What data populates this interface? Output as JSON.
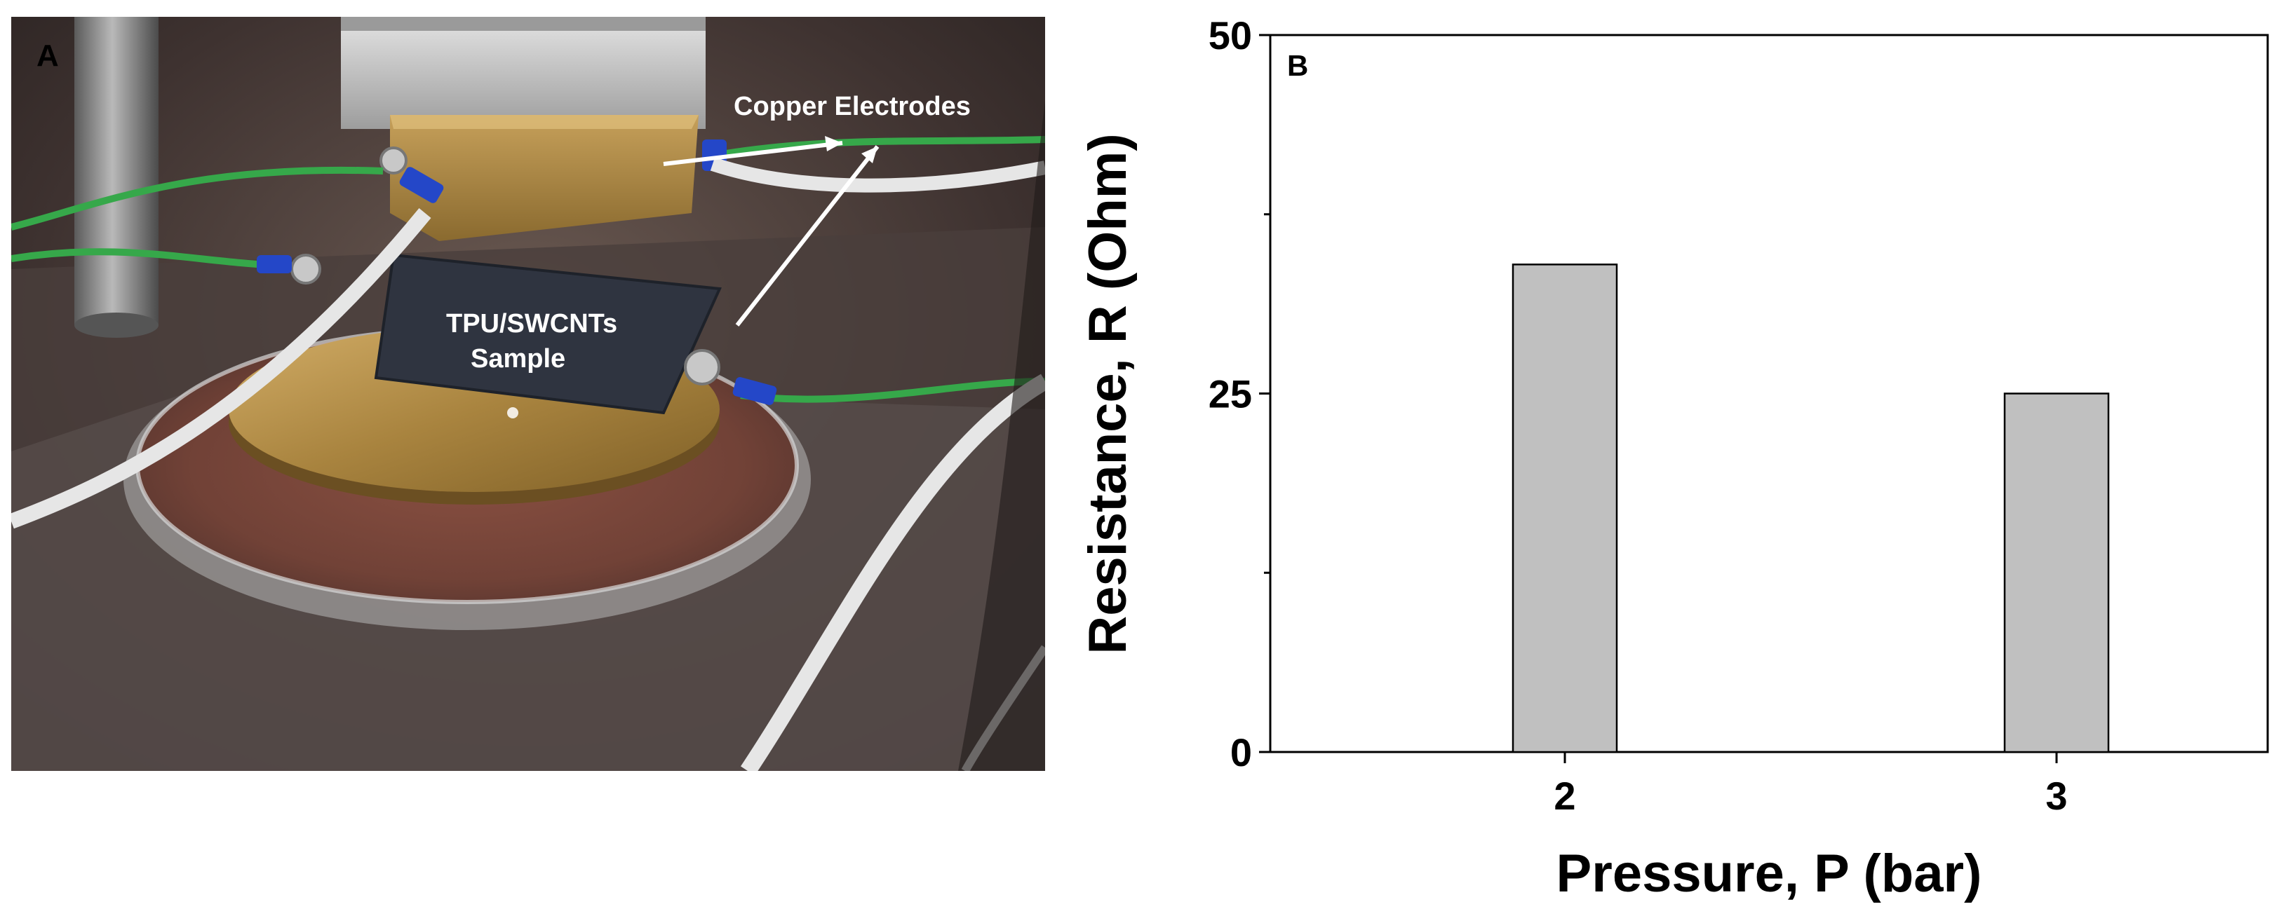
{
  "panel_a": {
    "letter": "A",
    "labels": {
      "electrodes": "Copper Electrodes",
      "sample_line1": "TPU/SWCNTs",
      "sample_line2": "Sample"
    }
  },
  "panel_b": {
    "letter": "B"
  },
  "chart_data": {
    "type": "bar",
    "title": "",
    "categories": [
      "2",
      "3"
    ],
    "values": [
      34,
      25
    ],
    "xlabel": "Pressure, P (bar)",
    "ylabel": "Resistance, R (Ohm)",
    "ylim": [
      0,
      50
    ],
    "yticks": [
      0,
      25,
      50
    ],
    "yticklabels": [
      "0",
      "25",
      "50"
    ],
    "grid": false,
    "bar_color": "#c0c0c0",
    "bar_edge_color": "#000000"
  }
}
